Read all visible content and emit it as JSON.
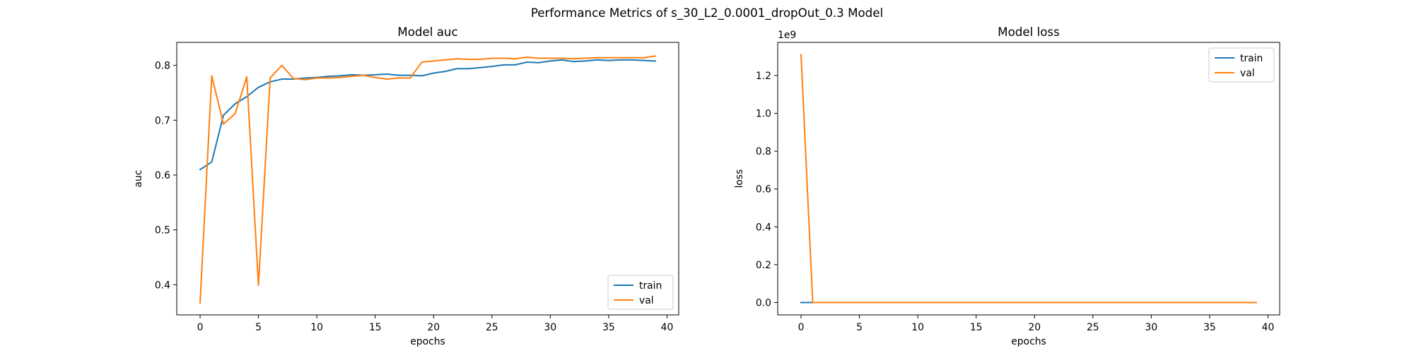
{
  "figure": {
    "suptitle": "Performance Metrics of s_30_L2_0.0001_dropOut_0.3 Model"
  },
  "chart_data": [
    {
      "type": "line",
      "title": "Model auc",
      "xlabel": "epochs",
      "ylabel": "auc",
      "xlim": [
        -2,
        41
      ],
      "ylim": [
        0.345,
        0.842
      ],
      "xticks": [
        0,
        5,
        10,
        15,
        20,
        25,
        30,
        35,
        40
      ],
      "yticks": [
        0.4,
        0.5,
        0.6,
        0.7,
        0.8
      ],
      "ytick_labels": [
        "0.4",
        "0.5",
        "0.6",
        "0.7",
        "0.8"
      ],
      "offset_text": "",
      "legend": {
        "placement": "lower-right",
        "entries": [
          "train",
          "val"
        ]
      },
      "x": [
        0,
        1,
        2,
        3,
        4,
        5,
        6,
        7,
        8,
        9,
        10,
        11,
        12,
        13,
        14,
        15,
        16,
        17,
        18,
        19,
        20,
        21,
        22,
        23,
        24,
        25,
        26,
        27,
        28,
        29,
        30,
        31,
        32,
        33,
        34,
        35,
        36,
        37,
        38,
        39
      ],
      "series": [
        {
          "name": "train",
          "color": "#1f77b4",
          "values": [
            0.61,
            0.624,
            0.709,
            0.73,
            0.743,
            0.76,
            0.77,
            0.775,
            0.775,
            0.777,
            0.778,
            0.78,
            0.781,
            0.783,
            0.782,
            0.783,
            0.784,
            0.782,
            0.782,
            0.781,
            0.786,
            0.789,
            0.794,
            0.794,
            0.796,
            0.798,
            0.801,
            0.801,
            0.806,
            0.805,
            0.808,
            0.81,
            0.807,
            0.808,
            0.81,
            0.809,
            0.81,
            0.81,
            0.809,
            0.808
          ]
        },
        {
          "name": "val",
          "color": "#ff7f0e",
          "values": [
            0.367,
            0.781,
            0.693,
            0.712,
            0.779,
            0.399,
            0.777,
            0.8,
            0.776,
            0.774,
            0.777,
            0.777,
            0.778,
            0.78,
            0.782,
            0.778,
            0.775,
            0.777,
            0.777,
            0.806,
            0.808,
            0.81,
            0.812,
            0.811,
            0.811,
            0.813,
            0.813,
            0.812,
            0.815,
            0.813,
            0.813,
            0.813,
            0.812,
            0.813,
            0.814,
            0.814,
            0.814,
            0.814,
            0.814,
            0.817
          ]
        }
      ]
    },
    {
      "type": "line",
      "title": "Model loss",
      "xlabel": "epochs",
      "ylabel": "loss",
      "xlim": [
        -2,
        41
      ],
      "ylim": [
        -0.0655,
        1.3755
      ],
      "xticks": [
        0,
        5,
        10,
        15,
        20,
        25,
        30,
        35,
        40
      ],
      "yticks": [
        0.0,
        0.2,
        0.4,
        0.6,
        0.8,
        1.0,
        1.2
      ],
      "ytick_labels": [
        "0.0",
        "0.2",
        "0.4",
        "0.6",
        "0.8",
        "1.0",
        "1.2"
      ],
      "offset_text": "1e9",
      "legend": {
        "placement": "upper-right",
        "entries": [
          "train",
          "val"
        ]
      },
      "x": [
        0,
        1,
        2,
        3,
        4,
        5,
        6,
        7,
        8,
        9,
        10,
        11,
        12,
        13,
        14,
        15,
        16,
        17,
        18,
        19,
        20,
        21,
        22,
        23,
        24,
        25,
        26,
        27,
        28,
        29,
        30,
        31,
        32,
        33,
        34,
        35,
        36,
        37,
        38,
        39
      ],
      "series": [
        {
          "name": "train",
          "color": "#1f77b4",
          "values": [
            0,
            0,
            0,
            0,
            0,
            0,
            0,
            0,
            0,
            0,
            0,
            0,
            0,
            0,
            0,
            0,
            0,
            0,
            0,
            0,
            0,
            0,
            0,
            0,
            0,
            0,
            0,
            0,
            0,
            0,
            0,
            0,
            0,
            0,
            0,
            0,
            0,
            0,
            0,
            0
          ]
        },
        {
          "name": "val",
          "color": "#ff7f0e",
          "values": [
            1.31,
            0,
            0,
            0,
            0,
            0,
            0,
            0,
            0,
            0,
            0,
            0,
            0,
            0,
            0,
            0,
            0,
            0,
            0,
            0,
            0,
            0,
            0,
            0,
            0,
            0,
            0,
            0,
            0,
            0,
            0,
            0,
            0,
            0,
            0,
            0,
            0,
            0,
            0,
            0
          ]
        }
      ]
    }
  ]
}
